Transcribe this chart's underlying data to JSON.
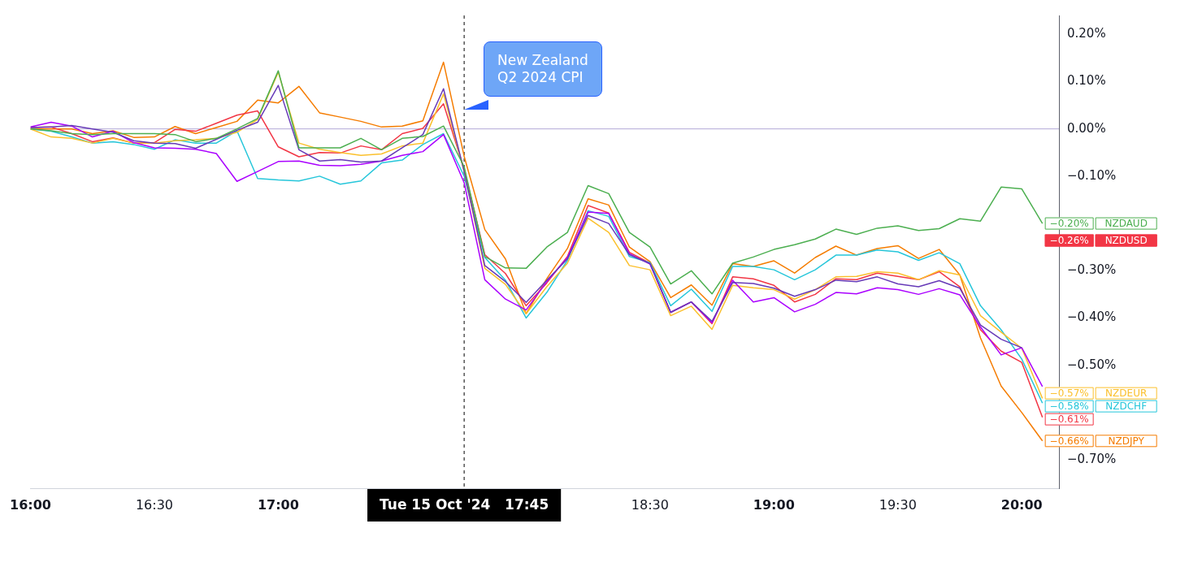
{
  "chart_data": {
    "type": "line",
    "legend": "right",
    "grid": false,
    "x": [
      "2024-10-15T16:00",
      "2024-10-15T16:05",
      "2024-10-15T16:10",
      "2024-10-15T16:15",
      "2024-10-15T16:20",
      "2024-10-15T16:25",
      "2024-10-15T16:30",
      "2024-10-15T16:35",
      "2024-10-15T16:40",
      "2024-10-15T16:45",
      "2024-10-15T16:50",
      "2024-10-15T16:55",
      "2024-10-15T17:00",
      "2024-10-15T17:05",
      "2024-10-15T17:10",
      "2024-10-15T17:15",
      "2024-10-15T17:20",
      "2024-10-15T17:25",
      "2024-10-15T17:30",
      "2024-10-15T17:35",
      "2024-10-15T17:40",
      "2024-10-15T17:45",
      "2024-10-15T17:50",
      "2024-10-15T17:55",
      "2024-10-15T18:00",
      "2024-10-15T18:05",
      "2024-10-15T18:10",
      "2024-10-15T18:15",
      "2024-10-15T18:20",
      "2024-10-15T18:25",
      "2024-10-15T18:30",
      "2024-10-15T18:35",
      "2024-10-15T18:40",
      "2024-10-15T18:45",
      "2024-10-15T18:50",
      "2024-10-15T18:55",
      "2024-10-15T19:00",
      "2024-10-15T19:05",
      "2024-10-15T19:10",
      "2024-10-15T19:15",
      "2024-10-15T19:20",
      "2024-10-15T19:25",
      "2024-10-15T19:30",
      "2024-10-15T19:35",
      "2024-10-15T19:40",
      "2024-10-15T19:45",
      "2024-10-15T19:50",
      "2024-10-15T19:55",
      "2024-10-15T20:00",
      "2024-10-15T20:05"
    ],
    "xlim": [
      "2024-10-15T16:00",
      "2024-10-15T20:09"
    ],
    "xticks": [
      {
        "value": "2024-10-15T16:00",
        "label": "16:00"
      },
      {
        "value": "2024-10-15T16:30",
        "label": "16:30"
      },
      {
        "value": "2024-10-15T17:00",
        "label": "17:00"
      },
      {
        "value": "2024-10-15T18:30",
        "label": "18:30"
      },
      {
        "value": "2024-10-15T19:00",
        "label": "19:00"
      },
      {
        "value": "2024-10-15T19:30",
        "label": "19:30"
      },
      {
        "value": "2024-10-15T20:00",
        "label": "20:00"
      }
    ],
    "ylim": [
      -0.76,
      0.24
    ],
    "yticks": [
      {
        "value": 0.2,
        "label": "0.20%"
      },
      {
        "value": 0.1,
        "label": "0.10%"
      },
      {
        "value": 0,
        "label": "0.00%"
      },
      {
        "value": -0.1,
        "label": "−0.10%"
      },
      {
        "value": -0.3,
        "label": "−0.30%"
      },
      {
        "value": -0.4,
        "label": "−0.40%"
      },
      {
        "value": -0.5,
        "label": "−0.50%"
      },
      {
        "value": -0.7,
        "label": "−0.70%"
      }
    ],
    "series": [
      {
        "name": "NZDAUD",
        "color": "#4caf50",
        "values": [
          0,
          -0.004,
          -0.01,
          -0.012,
          -0.01,
          -0.01,
          -0.01,
          -0.012,
          -0.027,
          -0.02,
          0,
          0.022,
          0.123,
          -0.04,
          -0.04,
          -0.04,
          -0.02,
          -0.044,
          -0.02,
          -0.016,
          0.006,
          -0.08,
          -0.27,
          -0.294,
          -0.295,
          -0.25,
          -0.219,
          -0.12,
          -0.137,
          -0.219,
          -0.25,
          -0.328,
          -0.3,
          -0.349,
          -0.284,
          -0.271,
          -0.255,
          -0.245,
          -0.233,
          -0.212,
          -0.223,
          -0.21,
          -0.205,
          -0.215,
          -0.211,
          -0.19,
          -0.195,
          -0.123,
          -0.127,
          -0.2
        ],
        "value_labels": [
          null,
          null,
          null,
          null,
          null,
          null,
          null,
          null,
          null,
          null,
          null,
          null,
          null,
          null,
          null,
          null,
          null,
          null,
          null,
          null,
          null,
          null,
          null,
          null,
          null,
          null,
          null,
          null,
          null,
          null,
          null,
          null,
          null,
          null,
          null,
          null,
          null,
          null,
          null,
          null,
          null,
          null,
          null,
          null,
          null,
          null,
          null,
          null,
          null,
          "−0.20%"
        ]
      },
      {
        "color": "#673ab7",
        "values": [
          0.003,
          0.004,
          0.007,
          0,
          -0.007,
          -0.025,
          -0.03,
          -0.031,
          -0.041,
          -0.022,
          -0.003,
          0.014,
          0.092,
          -0.044,
          -0.068,
          -0.065,
          -0.07,
          -0.068,
          -0.04,
          -0.012,
          0.085,
          -0.09,
          -0.289,
          -0.323,
          -0.367,
          -0.32,
          -0.275,
          -0.183,
          -0.2,
          -0.266,
          -0.285,
          -0.388,
          -0.366,
          -0.407,
          -0.325,
          -0.327,
          -0.337,
          -0.354,
          -0.34,
          -0.32,
          -0.323,
          -0.313,
          -0.328,
          -0.334,
          -0.321,
          -0.337,
          -0.415,
          -0.445,
          -0.463,
          null
        ]
      },
      {
        "color": "#aa00ff",
        "values": [
          0.004,
          0.014,
          0.006,
          -0.017,
          -0.005,
          -0.029,
          -0.04,
          -0.041,
          -0.043,
          -0.052,
          -0.111,
          -0.09,
          -0.069,
          -0.068,
          -0.077,
          -0.078,
          -0.075,
          -0.068,
          -0.056,
          -0.048,
          -0.012,
          -0.114,
          -0.319,
          -0.36,
          -0.383,
          -0.323,
          -0.272,
          -0.176,
          -0.179,
          -0.264,
          -0.286,
          -0.388,
          -0.366,
          -0.41,
          -0.32,
          -0.366,
          -0.357,
          -0.387,
          -0.371,
          -0.346,
          -0.349,
          -0.336,
          -0.34,
          -0.35,
          -0.338,
          -0.351,
          -0.419,
          -0.478,
          -0.463,
          -0.545
        ]
      },
      {
        "name": "NZDEUR",
        "color": "#fbc02d",
        "values": [
          0,
          -0.017,
          -0.02,
          -0.03,
          -0.02,
          -0.03,
          -0.03,
          -0.025,
          -0.023,
          -0.02,
          -0.007,
          0.02,
          0.12,
          -0.03,
          -0.043,
          -0.05,
          -0.056,
          -0.053,
          -0.036,
          -0.03,
          0.074,
          -0.09,
          -0.295,
          -0.329,
          -0.391,
          -0.334,
          -0.284,
          -0.189,
          -0.219,
          -0.289,
          -0.298,
          -0.395,
          -0.375,
          -0.424,
          -0.331,
          -0.336,
          -0.34,
          -0.36,
          -0.34,
          -0.313,
          -0.312,
          -0.302,
          -0.305,
          -0.319,
          -0.3,
          -0.309,
          -0.395,
          -0.43,
          -0.464,
          -0.57
        ],
        "value_labels": [
          null,
          null,
          null,
          null,
          null,
          null,
          null,
          null,
          null,
          null,
          null,
          null,
          null,
          null,
          null,
          null,
          null,
          null,
          null,
          null,
          null,
          null,
          null,
          null,
          null,
          null,
          null,
          null,
          null,
          null,
          null,
          null,
          null,
          null,
          null,
          null,
          null,
          null,
          null,
          null,
          null,
          null,
          null,
          null,
          null,
          null,
          null,
          null,
          null,
          "−0.57%"
        ]
      },
      {
        "name": "NZDCHF",
        "color": "#26c6da",
        "values": [
          0,
          -0.005,
          -0.017,
          -0.03,
          -0.027,
          -0.033,
          -0.043,
          -0.023,
          -0.03,
          -0.03,
          -0.004,
          -0.105,
          -0.108,
          -0.11,
          -0.1,
          -0.117,
          -0.11,
          -0.072,
          -0.066,
          -0.033,
          -0.01,
          -0.1,
          -0.272,
          -0.32,
          -0.4,
          -0.346,
          -0.278,
          -0.173,
          -0.185,
          -0.27,
          -0.283,
          -0.374,
          -0.339,
          -0.386,
          -0.291,
          -0.291,
          -0.298,
          -0.319,
          -0.298,
          -0.267,
          -0.267,
          -0.256,
          -0.26,
          -0.278,
          -0.262,
          -0.285,
          -0.374,
          -0.425,
          -0.487,
          -0.58
        ],
        "value_labels": [
          null,
          null,
          null,
          null,
          null,
          null,
          null,
          null,
          null,
          null,
          null,
          null,
          null,
          null,
          null,
          null,
          null,
          null,
          null,
          null,
          null,
          null,
          null,
          null,
          null,
          null,
          null,
          null,
          null,
          null,
          null,
          null,
          null,
          null,
          null,
          null,
          null,
          null,
          null,
          null,
          null,
          null,
          null,
          null,
          null,
          null,
          null,
          null,
          null,
          "−0.58%"
        ]
      },
      {
        "color": "#f23645",
        "values": [
          0.003,
          0.004,
          -0.01,
          -0.027,
          -0.019,
          -0.03,
          -0.029,
          -0.001,
          -0.005,
          0.012,
          0.029,
          0.038,
          -0.038,
          -0.059,
          -0.05,
          -0.051,
          -0.036,
          -0.044,
          -0.01,
          0.001,
          0.053,
          -0.085,
          -0.266,
          -0.306,
          -0.374,
          -0.326,
          -0.27,
          -0.162,
          -0.178,
          -0.261,
          -0.284,
          -0.388,
          -0.366,
          -0.412,
          -0.313,
          -0.317,
          -0.331,
          -0.366,
          -0.35,
          -0.317,
          -0.319,
          -0.305,
          -0.312,
          -0.319,
          -0.302,
          -0.334,
          -0.425,
          -0.47,
          -0.494,
          -0.61
        ],
        "value_labels": [
          null,
          null,
          null,
          null,
          null,
          null,
          null,
          null,
          null,
          null,
          null,
          null,
          null,
          null,
          null,
          null,
          null,
          null,
          null,
          null,
          null,
          null,
          null,
          null,
          null,
          null,
          null,
          null,
          null,
          null,
          null,
          null,
          null,
          null,
          null,
          null,
          null,
          null,
          null,
          null,
          null,
          null,
          null,
          null,
          null,
          null,
          null,
          null,
          null,
          "−0.61%"
        ]
      },
      {
        "name": "NZDJPY",
        "color": "#f57c00",
        "values": [
          0,
          0,
          0,
          -0.01,
          -0.004,
          -0.018,
          -0.017,
          0.005,
          -0.01,
          0.003,
          0.016,
          0.061,
          0.055,
          0.09,
          0.034,
          0.025,
          0.016,
          0.004,
          0.006,
          0.017,
          0.141,
          -0.058,
          -0.213,
          -0.275,
          -0.391,
          -0.317,
          -0.253,
          -0.148,
          -0.161,
          -0.25,
          -0.281,
          -0.357,
          -0.33,
          -0.373,
          -0.285,
          -0.291,
          -0.279,
          -0.305,
          -0.272,
          -0.248,
          -0.267,
          -0.253,
          -0.247,
          -0.274,
          -0.255,
          -0.309,
          -0.442,
          -0.544,
          -0.6,
          -0.66
        ],
        "value_labels": [
          null,
          null,
          null,
          null,
          null,
          null,
          null,
          null,
          null,
          null,
          null,
          null,
          null,
          null,
          null,
          null,
          null,
          null,
          null,
          null,
          null,
          null,
          null,
          null,
          null,
          null,
          null,
          null,
          null,
          null,
          null,
          null,
          null,
          null,
          null,
          null,
          null,
          null,
          null,
          null,
          null,
          null,
          null,
          null,
          null,
          null,
          null,
          null,
          null,
          "−0.66%"
        ]
      }
    ],
    "ref_lines": [
      {
        "axis": "y",
        "value": 0,
        "color": "#b2a8d6",
        "line_style": "solid"
      },
      {
        "axis": "x",
        "value": "2024-10-15T17:45",
        "label": "Tue 15 Oct '24   17:45",
        "color": "#000000",
        "line_style": "dashed"
      }
    ],
    "annotations": [
      "New Zealand\nQ2 2024 CPI",
      "NZDUSD",
      "−0.26%"
    ]
  }
}
